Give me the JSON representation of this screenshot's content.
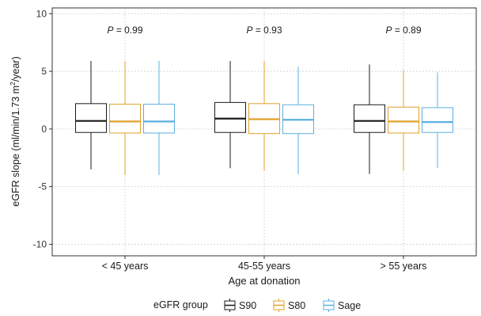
{
  "chart_data": {
    "type": "box",
    "xlabel": "Age at donation",
    "ylabel_main": "eGFR slope (ml/min/1.73 m",
    "ylabel_sup": "2",
    "ylabel_end": "/year)",
    "ylim": [
      -11,
      10.5
    ],
    "yticks": [
      10,
      5,
      0,
      -5,
      -10
    ],
    "grid": true,
    "legend": {
      "title": "eGFR group",
      "position": "bottom"
    },
    "categories": [
      "< 45 years",
      "45-55 years",
      "> 55 years"
    ],
    "series": [
      {
        "name": "S90",
        "color": "#1a1a1a"
      },
      {
        "name": "S80",
        "color": "#E0A12A"
      },
      {
        "name": "Sage",
        "color": "#5AB0E0"
      }
    ],
    "boxes": [
      [
        {
          "min": -3.5,
          "q1": -0.3,
          "median": 0.7,
          "q3": 2.2,
          "max": 5.9
        },
        {
          "min": -4.0,
          "q1": -0.35,
          "median": 0.65,
          "q3": 2.15,
          "max": 5.9
        },
        {
          "min": -4.0,
          "q1": -0.35,
          "median": 0.65,
          "q3": 2.15,
          "max": 5.9
        }
      ],
      [
        {
          "min": -3.4,
          "q1": -0.3,
          "median": 0.9,
          "q3": 2.3,
          "max": 5.9
        },
        {
          "min": -3.6,
          "q1": -0.4,
          "median": 0.85,
          "q3": 2.2,
          "max": 5.9
        },
        {
          "min": -3.9,
          "q1": -0.4,
          "median": 0.8,
          "q3": 2.1,
          "max": 5.4
        }
      ],
      [
        {
          "min": -3.9,
          "q1": -0.3,
          "median": 0.7,
          "q3": 2.1,
          "max": 5.6
        },
        {
          "min": -3.6,
          "q1": -0.35,
          "median": 0.65,
          "q3": 1.9,
          "max": 5.1
        },
        {
          "min": -3.4,
          "q1": -0.3,
          "median": 0.6,
          "q3": 1.85,
          "max": 4.9
        }
      ]
    ],
    "annotations": [
      {
        "label": "P",
        "text": " = 0.99"
      },
      {
        "label": "P",
        "text": " = 0.93"
      },
      {
        "label": "P",
        "text": " = 0.89"
      }
    ]
  }
}
